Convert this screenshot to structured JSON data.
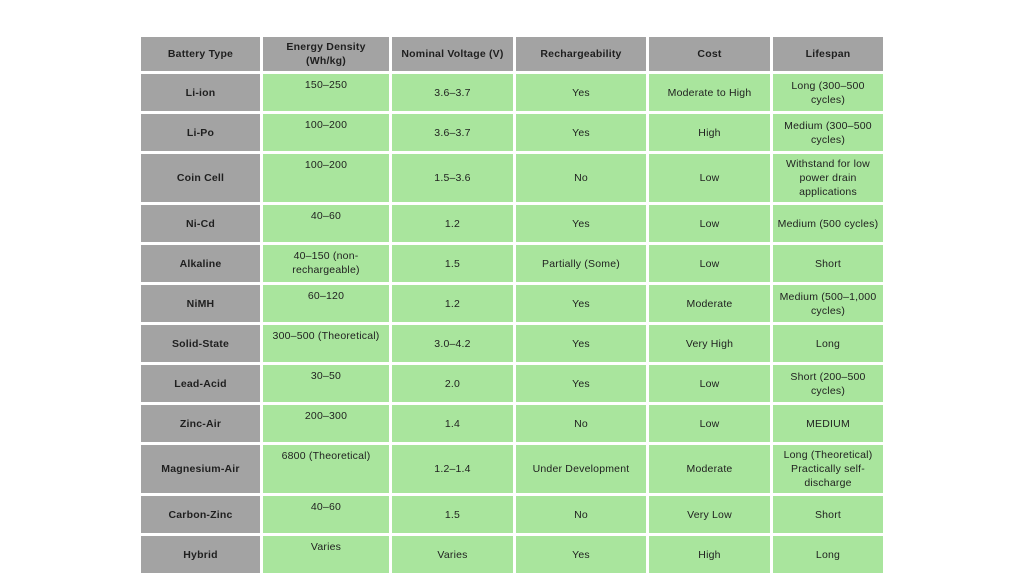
{
  "table": {
    "columns": [
      "Battery Type",
      "Energy Density (Wh/kg)",
      "Nominal Voltage (V)",
      "Rechargeability",
      "Cost",
      "Lifespan"
    ],
    "rows": [
      {
        "type": "Li-ion",
        "energy": "150–250",
        "voltage": "3.6–3.7",
        "recharge": "Yes",
        "cost": "Moderate to High",
        "lifespan": "Long (300–500 cycles)"
      },
      {
        "type": "Li-Po",
        "energy": "100–200",
        "voltage": "3.6–3.7",
        "recharge": "Yes",
        "cost": "High",
        "lifespan": "Medium (300–500 cycles)"
      },
      {
        "type": "Coin Cell",
        "energy": "100–200",
        "voltage": "1.5–3.6",
        "recharge": "No",
        "cost": "Low",
        "lifespan": "Withstand for low power drain applications"
      },
      {
        "type": "Ni-Cd",
        "energy": "40–60",
        "voltage": "1.2",
        "recharge": "Yes",
        "cost": "Low",
        "lifespan": "Medium (500 cycles)"
      },
      {
        "type": "Alkaline",
        "energy": "40–150 (non-rechargeable)",
        "voltage": "1.5",
        "recharge": "Partially (Some)",
        "cost": "Low",
        "lifespan": "Short"
      },
      {
        "type": "NiMH",
        "energy": "60–120",
        "voltage": "1.2",
        "recharge": "Yes",
        "cost": "Moderate",
        "lifespan": "Medium (500–1,000 cycles)"
      },
      {
        "type": "Solid-State",
        "energy": "300–500 (Theoretical)",
        "voltage": "3.0–4.2",
        "recharge": "Yes",
        "cost": "Very High",
        "lifespan": "Long"
      },
      {
        "type": "Lead-Acid",
        "energy": "30–50",
        "voltage": "2.0",
        "recharge": "Yes",
        "cost": "Low",
        "lifespan": "Short (200–500 cycles)"
      },
      {
        "type": "Zinc-Air",
        "energy": "200–300",
        "voltage": "1.4",
        "recharge": "No",
        "cost": "Low",
        "lifespan": "MEDIUM"
      },
      {
        "type": "Magnesium-Air",
        "energy": "6800 (Theoretical)",
        "voltage": "1.2–1.4",
        "recharge": "Under Development",
        "cost": "Moderate",
        "lifespan": "Long (Theoretical) Practically self-discharge"
      },
      {
        "type": "Carbon-Zinc",
        "energy": "40–60",
        "voltage": "1.5",
        "recharge": "No",
        "cost": "Very Low",
        "lifespan": "Short"
      },
      {
        "type": "Hybrid",
        "energy": "Varies",
        "voltage": "Varies",
        "recharge": "Yes",
        "cost": "High",
        "lifespan": "Long"
      }
    ]
  },
  "colors": {
    "header_bg": "#a3a3a3",
    "type_cell_bg": "#a3a3a3",
    "data_cell_bg": "#a9e59d",
    "page_bg": "#ffffff"
  }
}
